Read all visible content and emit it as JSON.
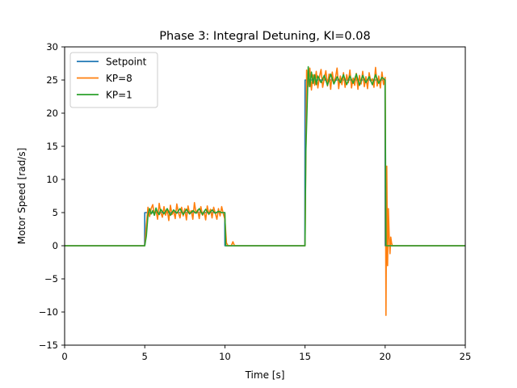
{
  "chart_data": {
    "type": "line",
    "title": "Phase 3: Integral Detuning, KI=0.08",
    "xlabel": "Time [s]",
    "ylabel": "Motor Speed [rad/s]",
    "xlim": [
      0,
      25
    ],
    "ylim": [
      -15,
      30
    ],
    "xticks": [
      0,
      5,
      10,
      15,
      20,
      25
    ],
    "yticks": [
      -15,
      -10,
      -5,
      0,
      5,
      10,
      15,
      20,
      25,
      30
    ],
    "grid": false,
    "legend_position": "top-left",
    "series": [
      {
        "name": "Setpoint",
        "color": "#1f77b4",
        "x": [
          0,
          4.99,
          5.0,
          9.99,
          10.0,
          14.99,
          15.0,
          19.99,
          20.0,
          25
        ],
        "y": [
          0,
          0,
          5,
          5,
          0,
          0,
          25,
          25,
          0,
          0
        ]
      },
      {
        "name": "KP=8",
        "color": "#ff7f0e",
        "x": [
          0,
          5.0,
          5.1,
          5.2,
          5.3,
          5.4,
          5.5,
          5.6,
          5.7,
          5.8,
          5.9,
          6.0,
          6.1,
          6.2,
          6.3,
          6.4,
          6.5,
          6.6,
          6.7,
          6.8,
          6.9,
          7.0,
          7.1,
          7.2,
          7.3,
          7.4,
          7.5,
          7.6,
          7.7,
          7.8,
          7.9,
          8.0,
          8.1,
          8.2,
          8.3,
          8.4,
          8.5,
          8.6,
          8.7,
          8.8,
          8.9,
          9.0,
          9.1,
          9.2,
          9.3,
          9.4,
          9.5,
          9.6,
          9.7,
          9.8,
          9.9,
          10.0,
          10.1,
          10.2,
          10.3,
          10.4,
          10.5,
          10.6,
          10.7,
          15.0,
          15.1,
          15.2,
          15.3,
          15.4,
          15.5,
          15.6,
          15.7,
          15.8,
          15.9,
          16.0,
          16.1,
          16.2,
          16.3,
          16.4,
          16.5,
          16.6,
          16.7,
          16.8,
          16.9,
          17.0,
          17.1,
          17.2,
          17.3,
          17.4,
          17.5,
          17.6,
          17.7,
          17.8,
          17.9,
          18.0,
          18.1,
          18.2,
          18.3,
          18.4,
          18.5,
          18.6,
          18.7,
          18.8,
          18.9,
          19.0,
          19.1,
          19.2,
          19.3,
          19.4,
          19.5,
          19.6,
          19.7,
          19.8,
          19.9,
          20.0,
          20.05,
          20.1,
          20.15,
          20.2,
          20.25,
          20.3,
          20.35,
          20.4,
          20.45,
          20.5,
          20.55,
          20.6,
          20.7,
          25
        ],
        "y": [
          0,
          0,
          3.2,
          5.8,
          4.4,
          5.6,
          6.2,
          4.6,
          5.4,
          4.0,
          6.4,
          5.0,
          4.3,
          5.9,
          4.6,
          5.5,
          3.8,
          6.1,
          4.7,
          5.2,
          4.1,
          6.3,
          5.0,
          4.2,
          5.8,
          4.5,
          5.6,
          3.9,
          6.0,
          4.8,
          5.3,
          4.0,
          6.5,
          4.9,
          5.4,
          4.1,
          5.9,
          4.6,
          5.2,
          3.9,
          6.0,
          4.7,
          5.5,
          4.2,
          5.8,
          4.9,
          4.0,
          5.6,
          4.5,
          5.9,
          4.8,
          4.0,
          0.4,
          0,
          0,
          0,
          0.6,
          0,
          0,
          0,
          26.5,
          24.0,
          26.8,
          23.5,
          25.8,
          24.2,
          26.3,
          23.8,
          25.5,
          26.6,
          23.9,
          25.2,
          26.4,
          24.1,
          25.9,
          23.6,
          26.2,
          24.5,
          25.4,
          26.8,
          23.7,
          25.6,
          24.3,
          26.1,
          23.9,
          25.8,
          24.6,
          26.5,
          23.8,
          25.3,
          24.2,
          26.0,
          23.6,
          25.7,
          24.4,
          26.3,
          24.0,
          25.5,
          23.7,
          26.1,
          24.8,
          25.2,
          23.9,
          26.9,
          24.1,
          25.6,
          23.8,
          26.2,
          24.3,
          25.4,
          -10.5,
          12.0,
          -3.0,
          5.6,
          1.5,
          -1.2,
          1.3,
          0.4,
          0,
          0,
          0,
          0,
          0,
          0
        ]
      },
      {
        "name": "KP=1",
        "color": "#2ca02c",
        "x": [
          0,
          5.0,
          5.1,
          5.2,
          5.3,
          5.4,
          5.5,
          5.6,
          5.7,
          5.8,
          5.9,
          6.0,
          6.2,
          6.4,
          6.6,
          6.8,
          7.0,
          7.2,
          7.4,
          7.6,
          7.8,
          8.0,
          8.2,
          8.4,
          8.6,
          8.8,
          9.0,
          9.2,
          9.4,
          9.6,
          9.8,
          10.0,
          10.05,
          15.0,
          15.05,
          15.2,
          15.3,
          15.4,
          15.5,
          15.6,
          15.7,
          15.8,
          16.0,
          16.2,
          16.4,
          16.6,
          16.8,
          17.0,
          17.2,
          17.4,
          17.6,
          17.8,
          18.0,
          18.2,
          18.4,
          18.6,
          18.8,
          19.0,
          19.2,
          19.4,
          19.6,
          19.8,
          20.0,
          20.05,
          25
        ],
        "y": [
          0,
          0,
          1.5,
          4.6,
          5.6,
          4.8,
          5.3,
          4.6,
          5.7,
          5.0,
          4.7,
          5.5,
          4.8,
          5.6,
          4.6,
          5.4,
          4.9,
          5.6,
          4.7,
          5.5,
          4.8,
          5.3,
          4.9,
          5.6,
          4.7,
          5.5,
          4.8,
          5.4,
          4.9,
          5.2,
          5.0,
          5.0,
          0,
          0,
          14.0,
          27.0,
          24.0,
          26.2,
          24.5,
          25.8,
          24.3,
          25.6,
          24.6,
          25.7,
          24.2,
          25.9,
          24.4,
          25.5,
          24.6,
          25.8,
          24.3,
          25.6,
          24.5,
          25.9,
          24.2,
          25.7,
          24.6,
          25.5,
          24.3,
          25.8,
          24.5,
          25.4,
          25.0,
          0,
          0
        ]
      }
    ]
  }
}
